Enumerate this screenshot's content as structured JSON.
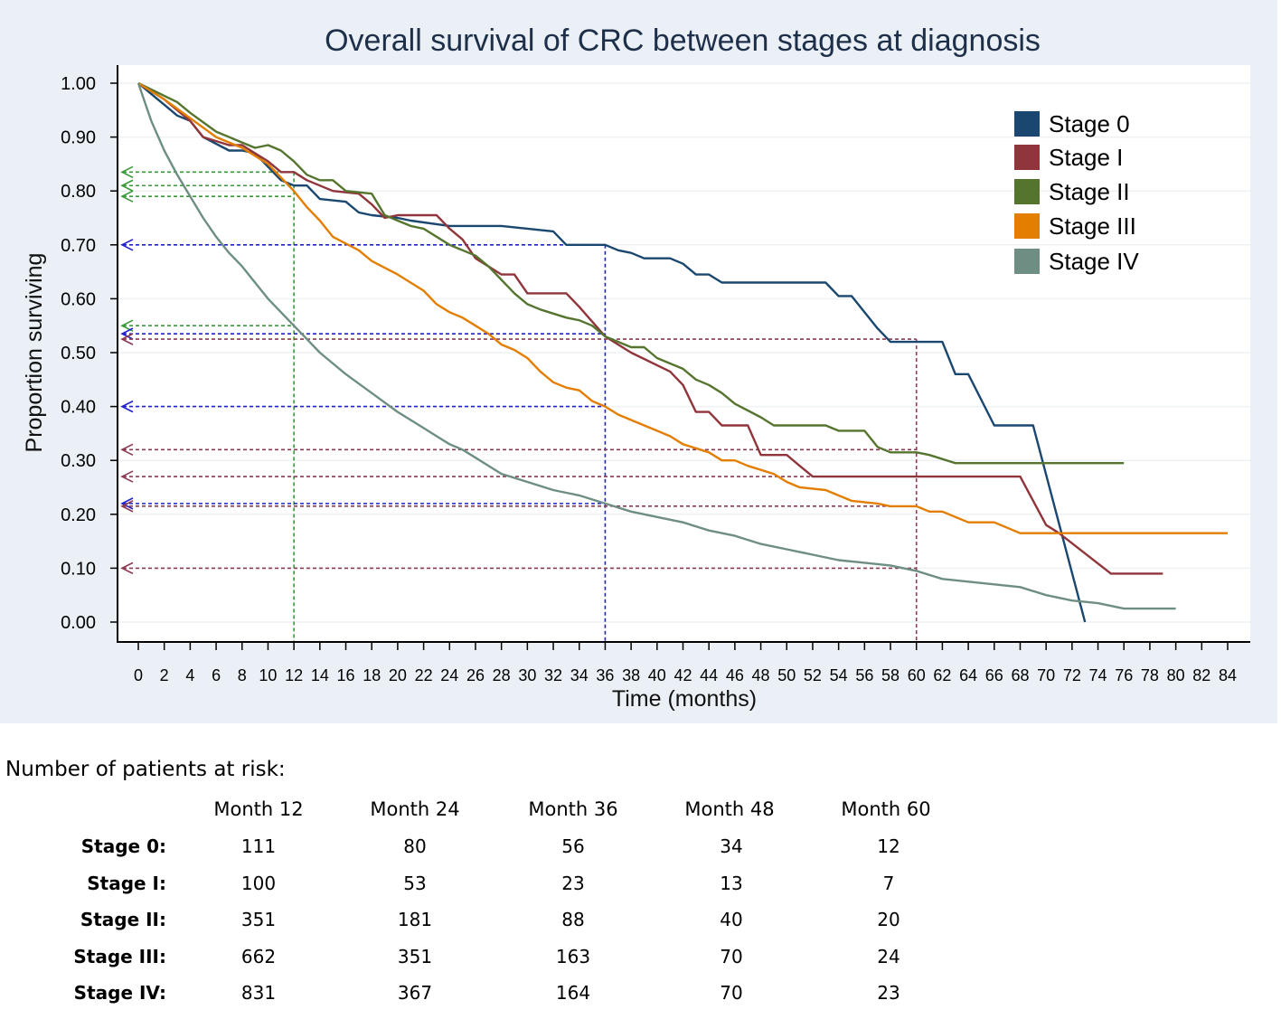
{
  "chart_data": {
    "type": "line",
    "title": "Overall survival of CRC between stages at diagnosis",
    "xlabel": "Time (months)",
    "ylabel": "Proportion surviving",
    "xlim": [
      0,
      84
    ],
    "ylim": [
      0,
      1
    ],
    "xticks": [
      0,
      2,
      4,
      6,
      8,
      10,
      12,
      14,
      16,
      18,
      20,
      22,
      24,
      26,
      28,
      30,
      32,
      34,
      36,
      38,
      40,
      42,
      44,
      46,
      48,
      50,
      52,
      54,
      56,
      58,
      60,
      62,
      64,
      66,
      68,
      70,
      72,
      74,
      76,
      78,
      80,
      82,
      84
    ],
    "yticks": [
      "0.00",
      "0.10",
      "0.20",
      "0.30",
      "0.40",
      "0.50",
      "0.60",
      "0.70",
      "0.80",
      "0.90",
      "1.00"
    ],
    "legend_position": "top-right",
    "series": [
      {
        "name": "Stage 0",
        "color": "#1a476f",
        "points": [
          [
            0,
            1.0
          ],
          [
            1,
            0.98
          ],
          [
            2,
            0.96
          ],
          [
            3,
            0.94
          ],
          [
            4,
            0.93
          ],
          [
            5,
            0.9
          ],
          [
            7,
            0.875
          ],
          [
            8,
            0.875
          ],
          [
            9,
            0.87
          ],
          [
            11,
            0.82
          ],
          [
            12,
            0.81
          ],
          [
            13,
            0.81
          ],
          [
            14,
            0.785
          ],
          [
            16,
            0.78
          ],
          [
            17,
            0.76
          ],
          [
            18,
            0.755
          ],
          [
            20,
            0.75
          ],
          [
            21,
            0.745
          ],
          [
            24,
            0.735
          ],
          [
            28,
            0.735
          ],
          [
            30,
            0.73
          ],
          [
            32,
            0.725
          ],
          [
            33,
            0.7
          ],
          [
            36,
            0.7
          ],
          [
            37,
            0.69
          ],
          [
            38,
            0.685
          ],
          [
            39,
            0.675
          ],
          [
            41,
            0.675
          ],
          [
            42,
            0.665
          ],
          [
            43,
            0.645
          ],
          [
            44,
            0.645
          ],
          [
            45,
            0.63
          ],
          [
            52,
            0.63
          ],
          [
            53,
            0.63
          ],
          [
            54,
            0.605
          ],
          [
            55,
            0.605
          ],
          [
            57,
            0.545
          ],
          [
            58,
            0.52
          ],
          [
            62,
            0.52
          ],
          [
            63,
            0.46
          ],
          [
            64,
            0.46
          ],
          [
            66,
            0.365
          ],
          [
            69,
            0.365
          ],
          [
            73,
            0.0
          ]
        ]
      },
      {
        "name": "Stage I",
        "color": "#90353b",
        "points": [
          [
            0,
            1.0
          ],
          [
            2,
            0.97
          ],
          [
            3,
            0.95
          ],
          [
            4,
            0.93
          ],
          [
            5,
            0.9
          ],
          [
            7,
            0.885
          ],
          [
            8,
            0.885
          ],
          [
            9,
            0.87
          ],
          [
            10,
            0.855
          ],
          [
            11,
            0.835
          ],
          [
            12,
            0.835
          ],
          [
            13,
            0.82
          ],
          [
            15,
            0.8
          ],
          [
            17,
            0.795
          ],
          [
            18,
            0.775
          ],
          [
            19,
            0.75
          ],
          [
            20,
            0.755
          ],
          [
            22,
            0.755
          ],
          [
            23,
            0.755
          ],
          [
            24,
            0.73
          ],
          [
            25,
            0.71
          ],
          [
            26,
            0.675
          ],
          [
            28,
            0.645
          ],
          [
            29,
            0.645
          ],
          [
            30,
            0.61
          ],
          [
            33,
            0.61
          ],
          [
            34,
            0.585
          ],
          [
            36,
            0.53
          ],
          [
            38,
            0.5
          ],
          [
            41,
            0.465
          ],
          [
            42,
            0.44
          ],
          [
            43,
            0.39
          ],
          [
            44,
            0.39
          ],
          [
            45,
            0.365
          ],
          [
            47,
            0.365
          ],
          [
            48,
            0.31
          ],
          [
            50,
            0.31
          ],
          [
            51,
            0.29
          ],
          [
            52,
            0.27
          ],
          [
            68,
            0.27
          ],
          [
            70,
            0.18
          ],
          [
            71,
            0.165
          ],
          [
            75,
            0.09
          ],
          [
            79,
            0.09
          ]
        ]
      },
      {
        "name": "Stage II",
        "color": "#55752f",
        "points": [
          [
            0,
            1.0
          ],
          [
            3,
            0.965
          ],
          [
            4,
            0.945
          ],
          [
            6,
            0.91
          ],
          [
            8,
            0.89
          ],
          [
            9,
            0.88
          ],
          [
            10,
            0.885
          ],
          [
            11,
            0.875
          ],
          [
            12,
            0.855
          ],
          [
            13,
            0.83
          ],
          [
            14,
            0.82
          ],
          [
            15,
            0.82
          ],
          [
            16,
            0.8
          ],
          [
            18,
            0.795
          ],
          [
            19,
            0.755
          ],
          [
            20,
            0.745
          ],
          [
            21,
            0.735
          ],
          [
            22,
            0.73
          ],
          [
            24,
            0.7
          ],
          [
            26,
            0.68
          ],
          [
            27,
            0.66
          ],
          [
            28,
            0.635
          ],
          [
            29,
            0.61
          ],
          [
            30,
            0.59
          ],
          [
            31,
            0.58
          ],
          [
            33,
            0.565
          ],
          [
            34,
            0.56
          ],
          [
            35,
            0.55
          ],
          [
            36,
            0.53
          ],
          [
            38,
            0.51
          ],
          [
            39,
            0.51
          ],
          [
            40,
            0.49
          ],
          [
            42,
            0.47
          ],
          [
            43,
            0.45
          ],
          [
            44,
            0.44
          ],
          [
            45,
            0.425
          ],
          [
            46,
            0.405
          ],
          [
            48,
            0.38
          ],
          [
            49,
            0.365
          ],
          [
            53,
            0.365
          ],
          [
            54,
            0.355
          ],
          [
            56,
            0.355
          ],
          [
            57,
            0.325
          ],
          [
            58,
            0.315
          ],
          [
            60,
            0.315
          ],
          [
            61,
            0.31
          ],
          [
            63,
            0.295
          ],
          [
            76,
            0.295
          ]
        ]
      },
      {
        "name": "Stage III",
        "color": "#e37e00",
        "points": [
          [
            0,
            1.0
          ],
          [
            2,
            0.97
          ],
          [
            4,
            0.935
          ],
          [
            6,
            0.9
          ],
          [
            8,
            0.88
          ],
          [
            10,
            0.85
          ],
          [
            12,
            0.8
          ],
          [
            13,
            0.77
          ],
          [
            14,
            0.745
          ],
          [
            15,
            0.715
          ],
          [
            17,
            0.69
          ],
          [
            18,
            0.67
          ],
          [
            20,
            0.645
          ],
          [
            22,
            0.615
          ],
          [
            23,
            0.59
          ],
          [
            24,
            0.575
          ],
          [
            25,
            0.565
          ],
          [
            26,
            0.55
          ],
          [
            27,
            0.535
          ],
          [
            28,
            0.515
          ],
          [
            29,
            0.505
          ],
          [
            30,
            0.49
          ],
          [
            31,
            0.465
          ],
          [
            32,
            0.445
          ],
          [
            33,
            0.435
          ],
          [
            34,
            0.43
          ],
          [
            35,
            0.41
          ],
          [
            36,
            0.4
          ],
          [
            37,
            0.385
          ],
          [
            38,
            0.375
          ],
          [
            40,
            0.355
          ],
          [
            41,
            0.345
          ],
          [
            42,
            0.33
          ],
          [
            44,
            0.315
          ],
          [
            45,
            0.3
          ],
          [
            46,
            0.3
          ],
          [
            47,
            0.29
          ],
          [
            49,
            0.275
          ],
          [
            50,
            0.26
          ],
          [
            51,
            0.25
          ],
          [
            53,
            0.245
          ],
          [
            55,
            0.225
          ],
          [
            57,
            0.22
          ],
          [
            58,
            0.215
          ],
          [
            60,
            0.215
          ],
          [
            61,
            0.205
          ],
          [
            62,
            0.205
          ],
          [
            64,
            0.185
          ],
          [
            66,
            0.185
          ],
          [
            68,
            0.165
          ],
          [
            84,
            0.165
          ]
        ]
      },
      {
        "name": "Stage IV",
        "color": "#6e8e84",
        "points": [
          [
            0,
            1.0
          ],
          [
            1,
            0.93
          ],
          [
            2,
            0.875
          ],
          [
            3,
            0.83
          ],
          [
            4,
            0.79
          ],
          [
            5,
            0.75
          ],
          [
            6,
            0.715
          ],
          [
            7,
            0.685
          ],
          [
            8,
            0.66
          ],
          [
            9,
            0.63
          ],
          [
            10,
            0.6
          ],
          [
            11,
            0.575
          ],
          [
            12,
            0.55
          ],
          [
            13,
            0.525
          ],
          [
            14,
            0.5
          ],
          [
            16,
            0.46
          ],
          [
            18,
            0.425
          ],
          [
            20,
            0.39
          ],
          [
            22,
            0.36
          ],
          [
            23,
            0.345
          ],
          [
            24,
            0.33
          ],
          [
            25,
            0.32
          ],
          [
            26,
            0.305
          ],
          [
            28,
            0.275
          ],
          [
            30,
            0.26
          ],
          [
            32,
            0.245
          ],
          [
            33,
            0.24
          ],
          [
            34,
            0.235
          ],
          [
            36,
            0.22
          ],
          [
            38,
            0.205
          ],
          [
            40,
            0.195
          ],
          [
            42,
            0.185
          ],
          [
            44,
            0.17
          ],
          [
            46,
            0.16
          ],
          [
            48,
            0.145
          ],
          [
            50,
            0.135
          ],
          [
            52,
            0.125
          ],
          [
            54,
            0.115
          ],
          [
            56,
            0.11
          ],
          [
            58,
            0.105
          ],
          [
            60,
            0.095
          ],
          [
            62,
            0.08
          ],
          [
            64,
            0.075
          ],
          [
            66,
            0.07
          ],
          [
            68,
            0.065
          ],
          [
            70,
            0.05
          ],
          [
            72,
            0.04
          ],
          [
            74,
            0.035
          ],
          [
            76,
            0.025
          ],
          [
            80,
            0.025
          ]
        ]
      }
    ],
    "reference_lines": [
      {
        "color": "#3a9a3a",
        "month": 12,
        "values": [
          0.835,
          0.81,
          0.79,
          0.55
        ]
      },
      {
        "color": "#2222cc",
        "month": 36,
        "values": [
          0.7,
          0.535,
          0.4,
          0.22
        ]
      },
      {
        "color": "#8b3a52",
        "month": 60,
        "values": [
          0.525,
          0.32,
          0.27,
          0.215,
          0.1
        ]
      }
    ]
  },
  "risk_table": {
    "title": "Number of patients at risk:",
    "columns": [
      "Month 12",
      "Month 24",
      "Month 36",
      "Month 48",
      "Month 60"
    ],
    "rows": [
      {
        "label": "Stage 0:",
        "values": [
          "111",
          "80",
          "56",
          "34",
          "12"
        ]
      },
      {
        "label": "Stage I:",
        "values": [
          "100",
          "53",
          "23",
          "13",
          "7"
        ]
      },
      {
        "label": "Stage II:",
        "values": [
          "351",
          "181",
          "88",
          "40",
          "20"
        ]
      },
      {
        "label": "Stage III:",
        "values": [
          "662",
          "351",
          "163",
          "70",
          "24"
        ]
      },
      {
        "label": "Stage IV:",
        "values": [
          "831",
          "367",
          "164",
          "70",
          "23"
        ]
      }
    ]
  }
}
